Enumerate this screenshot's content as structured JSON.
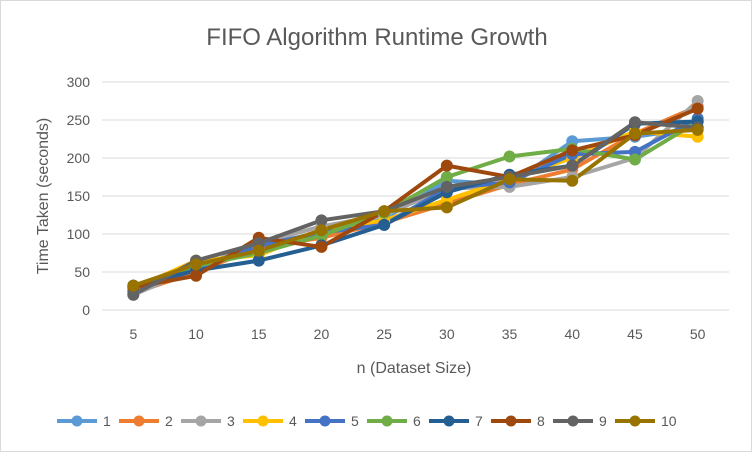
{
  "chart_data": {
    "type": "line",
    "title": "FIFO Algorithm Runtime Growth",
    "xlabel": "n (Dataset Size)",
    "ylabel": "Time Taken (seconds)",
    "x": [
      5,
      10,
      15,
      20,
      25,
      30,
      35,
      40,
      45,
      50
    ],
    "ylim": [
      0,
      300
    ],
    "yticks": [
      0,
      50,
      100,
      150,
      200,
      250,
      300
    ],
    "grid": true,
    "legend_position": "bottom",
    "series": [
      {
        "name": "1",
        "color": "#5B9BD5",
        "values": [
          25,
          55,
          80,
          100,
          120,
          170,
          165,
          222,
          228,
          240
        ]
      },
      {
        "name": "2",
        "color": "#ED7D31",
        "values": [
          22,
          50,
          82,
          95,
          115,
          140,
          165,
          185,
          232,
          268
        ]
      },
      {
        "name": "3",
        "color": "#A5A5A5",
        "values": [
          20,
          55,
          88,
          110,
          125,
          160,
          162,
          175,
          200,
          275
        ]
      },
      {
        "name": "4",
        "color": "#FFC000",
        "values": [
          28,
          65,
          72,
          105,
          118,
          145,
          172,
          200,
          235,
          228
        ]
      },
      {
        "name": "5",
        "color": "#4472C4",
        "values": [
          25,
          53,
          85,
          102,
          112,
          160,
          168,
          205,
          208,
          252
        ]
      },
      {
        "name": "6",
        "color": "#70AD47",
        "values": [
          30,
          58,
          75,
          98,
          128,
          175,
          202,
          212,
          198,
          248
        ]
      },
      {
        "name": "7",
        "color": "#255E91",
        "values": [
          32,
          52,
          65,
          85,
          112,
          155,
          178,
          190,
          245,
          248
        ]
      },
      {
        "name": "8",
        "color": "#9E480E",
        "values": [
          30,
          45,
          95,
          83,
          130,
          190,
          175,
          210,
          230,
          265
        ]
      },
      {
        "name": "9",
        "color": "#636363",
        "values": [
          20,
          65,
          88,
          118,
          130,
          162,
          175,
          190,
          247,
          240
        ]
      },
      {
        "name": "10",
        "color": "#997300",
        "values": [
          32,
          60,
          78,
          105,
          130,
          135,
          172,
          170,
          232,
          237
        ]
      }
    ]
  }
}
